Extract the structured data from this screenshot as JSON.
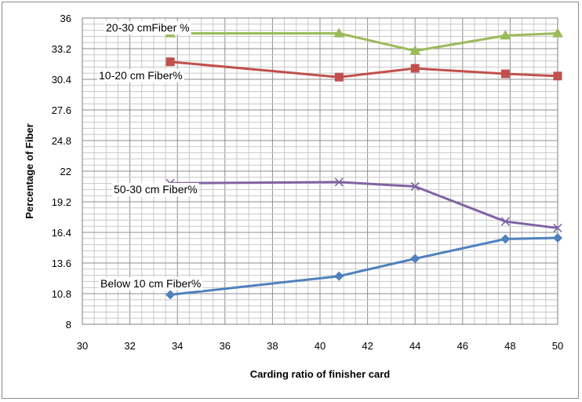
{
  "chart_data": {
    "type": "line",
    "title": "",
    "xlabel": "Carding ratio of finisher card",
    "ylabel": "Percentage of Fiber",
    "xlim": [
      30,
      50
    ],
    "ylim": [
      8,
      36
    ],
    "x_ticks": [
      30,
      32,
      34,
      36,
      38,
      40,
      42,
      44,
      46,
      48,
      50
    ],
    "y_ticks": [
      "8",
      "10.8",
      "13.6",
      "16.4",
      "19.2",
      "22",
      "24.8",
      "27.6",
      "30.4",
      "33.2",
      "36"
    ],
    "grid": true,
    "x": [
      33.7,
      40.8,
      44,
      47.8,
      50
    ],
    "series": [
      {
        "name": "20-30 cmFiber %",
        "color": "#9bbb59",
        "marker": "triangle",
        "values": [
          34.6,
          34.6,
          33.0,
          34.4,
          34.6
        ]
      },
      {
        "name": "10-20 cm Fiber%",
        "color": "#c0504d",
        "marker": "square",
        "values": [
          32.0,
          30.6,
          31.4,
          30.9,
          30.7
        ]
      },
      {
        "name": "50-30 cm Fiber%",
        "color": "#8064a2",
        "marker": "x",
        "values": [
          20.9,
          21.0,
          20.6,
          17.4,
          16.8
        ]
      },
      {
        "name": "Below 10 cm Fiber%",
        "color": "#4f81bd",
        "marker": "diamond",
        "values": [
          10.7,
          12.4,
          14.0,
          15.8,
          15.9
        ]
      }
    ]
  }
}
